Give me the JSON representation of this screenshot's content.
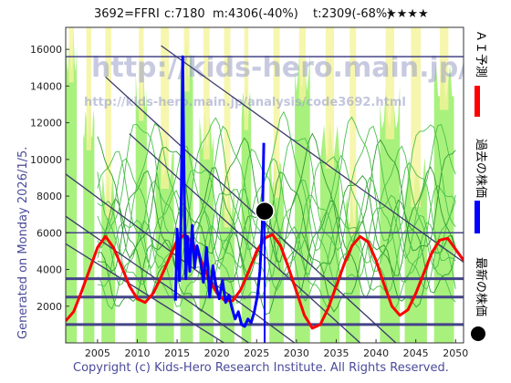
{
  "header": {
    "code_label": "3692=FFRI",
    "c_label": "c:7180",
    "m_label": "m:4306(-40%)",
    "t_label": "t:2309(-68%)",
    "stars": "★★★★"
  },
  "side_text": "Generated on Monday 2026/1/5.",
  "footer": "Copyright (c) Kids-Hero Research Institute. All Rights Reserved.",
  "watermark": {
    "line1": "http://kids-hero.main.jp/",
    "line2": "http://kids-hero.main.jp/analysis/code3692.html"
  },
  "legend": [
    {
      "label": "ＡＩ予測",
      "color": "#ff0000"
    },
    {
      "label": "過去の株価",
      "color": "#0000ff"
    },
    {
      "label": "最新の株価",
      "color": "#000000"
    }
  ],
  "colors": {
    "ai_forecast": "#ff0000",
    "past_price": "#0000ff",
    "latest_dot": "#000000",
    "trend_lines": "#3a3a6a",
    "band_green": "#99ee66",
    "band_yellow": "#f4f49a",
    "range_lines": "#444488"
  },
  "chart_data": {
    "type": "line",
    "xlim": [
      2001,
      2051
    ],
    "ylim": [
      0,
      17200
    ],
    "x_ticks": [
      2005,
      2010,
      2015,
      2020,
      2025,
      2030,
      2035,
      2040,
      2045,
      2050
    ],
    "y_ticks": [
      2000,
      4000,
      6000,
      8000,
      10000,
      12000,
      14000,
      16000
    ],
    "horizontal_levels": [
      15600,
      6000,
      3500,
      2500,
      1000
    ],
    "series": [
      {
        "name": "ＡＩ予測",
        "x": [
          2001,
          2002,
          2003,
          2004,
          2005,
          2006,
          2007,
          2008,
          2009,
          2010,
          2011,
          2012,
          2013,
          2014,
          2015,
          2016,
          2017,
          2018,
          2019,
          2020,
          2021,
          2022,
          2023,
          2024,
          2025,
          2026,
          2027,
          2028,
          2029,
          2030,
          2031,
          2032,
          2033,
          2034,
          2035,
          2036,
          2037,
          2038,
          2039,
          2040,
          2041,
          2042,
          2043,
          2044,
          2045,
          2046,
          2047,
          2048,
          2049,
          2050,
          2051
        ],
        "values": [
          1200,
          1700,
          2800,
          4000,
          5200,
          5800,
          5200,
          4200,
          3100,
          2400,
          2200,
          2700,
          3600,
          4600,
          5600,
          5900,
          5400,
          4500,
          3500,
          2700,
          2300,
          2300,
          2900,
          3900,
          5000,
          5700,
          5900,
          5300,
          4100,
          2800,
          1500,
          800,
          1000,
          1900,
          3100,
          4300,
          5300,
          5800,
          5500,
          4500,
          3200,
          2000,
          1500,
          1800,
          2700,
          3800,
          4900,
          5600,
          5700,
          5100,
          4500
        ]
      },
      {
        "name": "過去の株価",
        "x": [
          2014.8,
          2015.0,
          2015.3,
          2015.5,
          2015.7,
          2015.9,
          2016.1,
          2016.3,
          2016.6,
          2016.9,
          2017.2,
          2017.5,
          2017.9,
          2018.3,
          2018.7,
          2019.1,
          2019.5,
          2019.9,
          2020.3,
          2020.7,
          2021.1,
          2021.5,
          2021.9,
          2022.3,
          2022.7,
          2023.1,
          2023.5,
          2023.9,
          2024.3,
          2024.7,
          2025.1,
          2025.4,
          2025.7,
          2025.9
        ],
        "values": [
          2300,
          6200,
          3400,
          6900,
          15600,
          8200,
          3500,
          5800,
          3900,
          6400,
          4100,
          5300,
          4600,
          3300,
          5200,
          2500,
          4200,
          3100,
          2400,
          3400,
          2200,
          2600,
          1900,
          1300,
          1700,
          1000,
          900,
          1300,
          1100,
          1700,
          2600,
          3900,
          6300,
          10900
        ]
      }
    ],
    "latest": {
      "x": 2026.0,
      "y": 7180
    }
  }
}
